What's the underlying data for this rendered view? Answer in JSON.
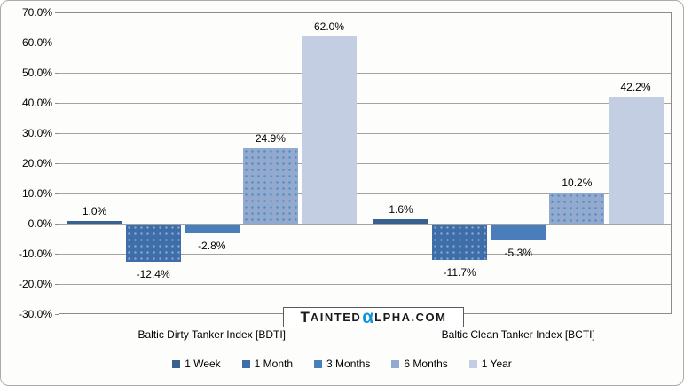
{
  "chart_data": {
    "type": "bar",
    "title": "",
    "categories": [
      "Baltic Dirty Tanker Index [BDTI]",
      "Baltic Clean Tanker Index [BCTI]"
    ],
    "series": [
      {
        "name": "1 Week",
        "values": [
          1.0,
          1.6
        ],
        "labels": [
          "1.0%",
          "1.6%"
        ],
        "color": "#38618f"
      },
      {
        "name": "1 Month",
        "values": [
          -12.4,
          -11.7
        ],
        "labels": [
          "-12.4%",
          "-11.7%"
        ],
        "color": "#3e6da8",
        "dot_color": "#7fa8d4"
      },
      {
        "name": "3 Months",
        "values": [
          -2.8,
          -5.3
        ],
        "labels": [
          "-2.8%",
          "-5.3%"
        ],
        "color": "#4a7eba"
      },
      {
        "name": "6 Months",
        "values": [
          24.9,
          10.2
        ],
        "labels": [
          "24.9%",
          "10.2%"
        ],
        "color": "#93a9ce",
        "dot_color": "#4e8fc7"
      },
      {
        "name": "1 Year",
        "values": [
          62.0,
          42.2
        ],
        "labels": [
          "62.0%",
          "42.2%"
        ],
        "color": "#c3cee2"
      }
    ],
    "y_axis": {
      "min": -30,
      "max": 70,
      "step": 10,
      "tick_labels": [
        "70.0%",
        "60.0%",
        "50.0%",
        "40.0%",
        "30.0%",
        "20.0%",
        "10.0%",
        "0.0%",
        "-10.0%",
        "-20.0%",
        "-30.0%"
      ]
    },
    "grid": true,
    "legend_position": "bottom",
    "legend": [
      "1 Week",
      "1 Month",
      "3 Months",
      "6 Months",
      "1 Year"
    ]
  },
  "watermark": {
    "prefix": "T",
    "prefix_rest": "AINTED",
    "alpha": "α",
    "suffix": "LPHA.COM",
    "alpha_color": "#0d93dc"
  },
  "colors": {
    "gridline": "#a3a3a3",
    "plot_border": "#8c8c8c",
    "outer_border": "#ababab",
    "background": "#fdfefc",
    "label_text": "#000000"
  }
}
